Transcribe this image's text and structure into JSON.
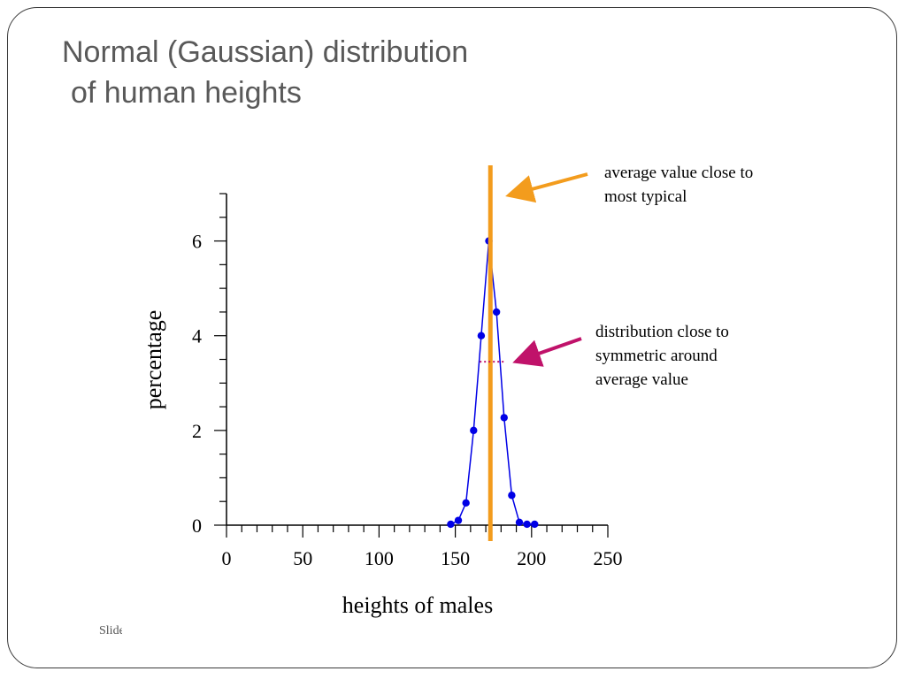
{
  "slide": {
    "title_line1": "Normal (Gaussian) distribution",
    "title_line2": "of human heights",
    "footer_text": "Slide"
  },
  "annotations": {
    "average": {
      "line1": "average value close to",
      "line2": "most typical",
      "arrow_color": "#F39C1D"
    },
    "symmetry": {
      "line1": "distribution close to",
      "line2": "symmetric around",
      "line3": "average value",
      "arrow_color": "#C0126A"
    }
  },
  "chart_data": {
    "type": "line",
    "xlabel": "heights of males",
    "ylabel": "percentage",
    "xlim": [
      0,
      250
    ],
    "ylim": [
      0,
      7
    ],
    "xticks": [
      0,
      50,
      100,
      150,
      200,
      250
    ],
    "yticks": [
      0,
      2,
      4,
      6
    ],
    "x_minor_step": 10,
    "y_minor_step": 0.5,
    "grid": false,
    "series": [
      {
        "x": [
          147,
          152,
          157,
          162,
          167,
          172,
          177,
          182,
          187,
          192,
          197,
          202
        ],
        "y": [
          0.02,
          0.1,
          0.47,
          2.0,
          4.0,
          6.0,
          4.5,
          2.27,
          0.63,
          0.06,
          0.02,
          0.02
        ],
        "color": "#0000E6"
      }
    ],
    "mean_line": {
      "x": 173,
      "color": "#F39C1D"
    },
    "half_width_marker": {
      "x_from": 166,
      "x_to": 183,
      "y": 3.45,
      "color": "#C0126A"
    }
  }
}
